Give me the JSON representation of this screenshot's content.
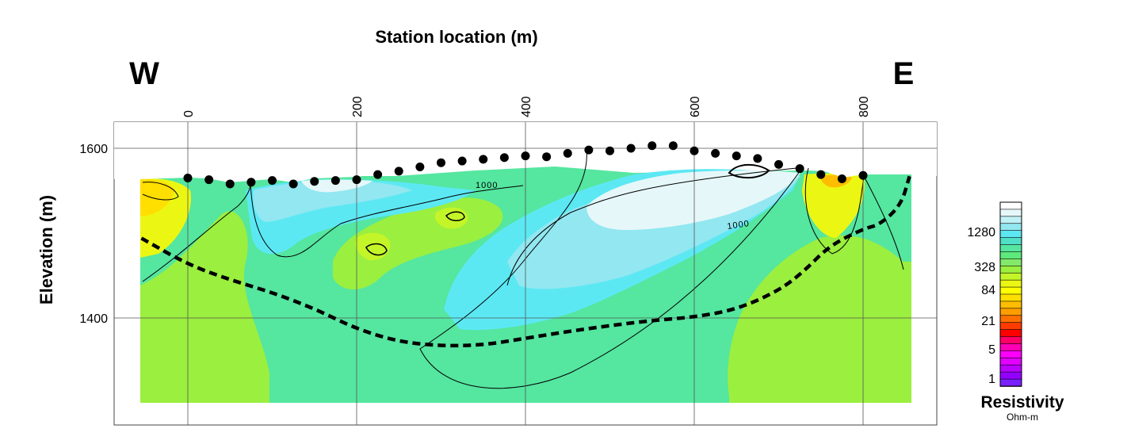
{
  "chart_data": {
    "type": "heatmap",
    "title": "Station location (m)",
    "xlabel": "Station location (m)",
    "ylabel": "Elevation (m)",
    "direction_left": "W",
    "direction_right": "E",
    "xlim": [
      -85,
      890
    ],
    "ylim": [
      1290,
      1630
    ],
    "x_ticks": [
      0,
      200,
      400,
      600,
      800
    ],
    "y_ticks": [
      1400,
      1600
    ],
    "grid": true,
    "contour_label": "1000",
    "contour_labels_shown": [
      "1000",
      "1000"
    ],
    "electrodes": [
      {
        "x": 0,
        "y": 1565
      },
      {
        "x": 25,
        "y": 1563
      },
      {
        "x": 50,
        "y": 1558
      },
      {
        "x": 75,
        "y": 1560
      },
      {
        "x": 100,
        "y": 1562
      },
      {
        "x": 125,
        "y": 1558
      },
      {
        "x": 150,
        "y": 1561
      },
      {
        "x": 175,
        "y": 1562
      },
      {
        "x": 200,
        "y": 1563
      },
      {
        "x": 225,
        "y": 1569
      },
      {
        "x": 250,
        "y": 1573
      },
      {
        "x": 275,
        "y": 1578
      },
      {
        "x": 300,
        "y": 1583
      },
      {
        "x": 325,
        "y": 1585
      },
      {
        "x": 350,
        "y": 1587
      },
      {
        "x": 375,
        "y": 1589
      },
      {
        "x": 400,
        "y": 1591
      },
      {
        "x": 425,
        "y": 1590
      },
      {
        "x": 450,
        "y": 1594
      },
      {
        "x": 475,
        "y": 1598
      },
      {
        "x": 500,
        "y": 1597
      },
      {
        "x": 525,
        "y": 1600
      },
      {
        "x": 550,
        "y": 1603
      },
      {
        "x": 575,
        "y": 1603
      },
      {
        "x": 600,
        "y": 1597
      },
      {
        "x": 625,
        "y": 1594
      },
      {
        "x": 650,
        "y": 1591
      },
      {
        "x": 675,
        "y": 1588
      },
      {
        "x": 700,
        "y": 1581
      },
      {
        "x": 725,
        "y": 1576
      },
      {
        "x": 750,
        "y": 1569
      },
      {
        "x": 775,
        "y": 1564
      },
      {
        "x": 800,
        "y": 1568
      }
    ],
    "interpreted_boundary": [
      [
        -55,
        1494
      ],
      [
        0,
        1463
      ],
      [
        50,
        1445
      ],
      [
        100,
        1430
      ],
      [
        150,
        1411
      ],
      [
        200,
        1387
      ],
      [
        250,
        1372
      ],
      [
        300,
        1367
      ],
      [
        350,
        1368
      ],
      [
        400,
        1376
      ],
      [
        450,
        1384
      ],
      [
        500,
        1391
      ],
      [
        550,
        1397
      ],
      [
        600,
        1401
      ],
      [
        650,
        1410
      ],
      [
        700,
        1432
      ],
      [
        730,
        1455
      ],
      [
        760,
        1485
      ],
      [
        800,
        1505
      ],
      [
        820,
        1510
      ],
      [
        845,
        1533
      ],
      [
        855,
        1567
      ]
    ],
    "legend": {
      "title": "Resistivity",
      "unit": "Ohm-m",
      "labels": [
        "1280",
        "328",
        "84",
        "21",
        "5",
        "1"
      ],
      "colors_top_to_bottom": [
        "#ffffff",
        "#e6f7f9",
        "#bff0f4",
        "#92e7f0",
        "#5ce8f3",
        "#4fe0c8",
        "#55e6a0",
        "#5ee97c",
        "#82e96a",
        "#9bef3f",
        "#c4f528",
        "#ebf713",
        "#ffff00",
        "#ffdf00",
        "#ffbd00",
        "#ff9d00",
        "#ff6f00",
        "#ff3b00",
        "#ff0000",
        "#ff0068",
        "#ff00b4",
        "#ff00ff",
        "#e200ff",
        "#bb00ff",
        "#9400ff",
        "#7a1fff"
      ]
    }
  }
}
